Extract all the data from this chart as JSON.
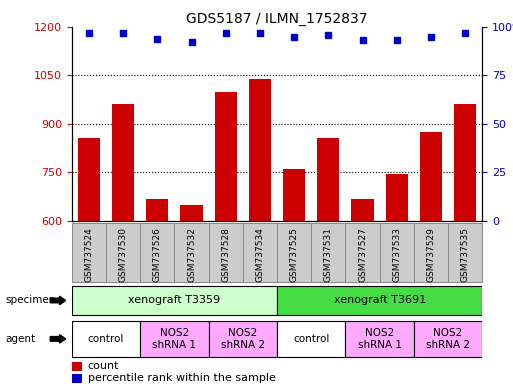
{
  "title": "GDS5187 / ILMN_1752837",
  "samples": [
    "GSM737524",
    "GSM737530",
    "GSM737526",
    "GSM737532",
    "GSM737528",
    "GSM737534",
    "GSM737525",
    "GSM737531",
    "GSM737527",
    "GSM737533",
    "GSM737529",
    "GSM737535"
  ],
  "bar_values": [
    855,
    960,
    668,
    648,
    1000,
    1040,
    760,
    855,
    668,
    745,
    875,
    960
  ],
  "percentile_values": [
    97,
    97,
    94,
    92,
    97,
    97,
    95,
    96,
    93,
    93,
    95,
    97
  ],
  "bar_color": "#cc0000",
  "dot_color": "#0000cc",
  "ylim_left": [
    600,
    1200
  ],
  "ylim_right": [
    0,
    100
  ],
  "yticks_left": [
    600,
    750,
    900,
    1050,
    1200
  ],
  "yticks_right": [
    0,
    25,
    50,
    75,
    100
  ],
  "specimen_labels": [
    "xenograft T3359",
    "xenograft T3691"
  ],
  "specimen_spans": [
    [
      0,
      5
    ],
    [
      6,
      11
    ]
  ],
  "specimen_colors": [
    "#ccffcc",
    "#44dd44"
  ],
  "agent_groups": [
    {
      "label": "control",
      "span": [
        0,
        1
      ],
      "color": "#ffaaff"
    },
    {
      "label": "NOS2\nshRNA 1",
      "span": [
        2,
        3
      ],
      "color": "#ffaaff"
    },
    {
      "label": "NOS2\nshRNA 2",
      "span": [
        4,
        5
      ],
      "color": "#ffaaff"
    },
    {
      "label": "control",
      "span": [
        6,
        7
      ],
      "color": "#ffaaff"
    },
    {
      "label": "NOS2\nshRNA 1",
      "span": [
        8,
        9
      ],
      "color": "#ffaaff"
    },
    {
      "label": "NOS2\nshRNA 2",
      "span": [
        10,
        11
      ],
      "color": "#ffaaff"
    }
  ],
  "legend_count_color": "#cc0000",
  "legend_dot_color": "#0000cc",
  "label_color_left": "#cc0000",
  "label_color_right": "#0000cc",
  "xtick_bg_color": "#cccccc",
  "xtick_edge_color": "#888888"
}
